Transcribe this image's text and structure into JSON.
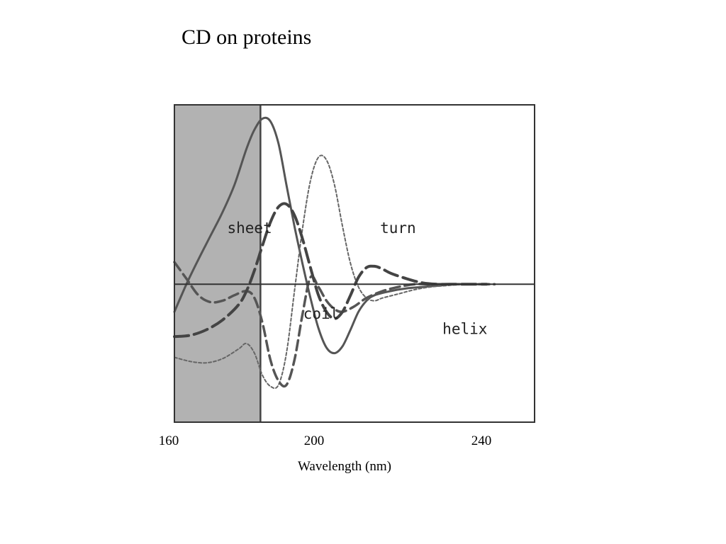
{
  "slide": {
    "title": "CD on proteins"
  },
  "chart_data": {
    "type": "line",
    "title": "",
    "xlabel": "Wavelength (nm)",
    "ylabel": "",
    "xticks": [
      "160",
      "200",
      "240"
    ],
    "xtick_values": [
      160,
      200,
      240
    ],
    "xlim": [
      160,
      250
    ],
    "ylim": [
      -1.0,
      1.3
    ],
    "grid": false,
    "legend": "none",
    "shaded_region": {
      "x_from": 160,
      "x_to": 181.5,
      "color": "#b2b2b2"
    },
    "zero_line": 0,
    "series": [
      {
        "name": "sheet",
        "style": "solid",
        "color": "#555555",
        "x": [
          160,
          163,
          166,
          169,
          172,
          175,
          178,
          180,
          182,
          184,
          186,
          188,
          190,
          192,
          194,
          196,
          198,
          200,
          202,
          204,
          206,
          208,
          210,
          214,
          218,
          222,
          226,
          230,
          234,
          238
        ],
        "y": [
          -0.2,
          0.0,
          0.18,
          0.35,
          0.52,
          0.72,
          0.98,
          1.12,
          1.2,
          1.18,
          1.02,
          0.72,
          0.42,
          0.15,
          -0.1,
          -0.32,
          -0.46,
          -0.5,
          -0.45,
          -0.33,
          -0.2,
          -0.12,
          -0.08,
          -0.05,
          -0.03,
          -0.02,
          -0.01,
          0.0,
          0.0,
          0.0
        ]
      },
      {
        "name": "turn",
        "style": "dotted",
        "color": "#666666",
        "x": [
          160,
          164,
          168,
          172,
          176,
          178,
          180,
          182,
          184,
          186,
          188,
          190,
          192,
          194,
          196,
          198,
          200,
          202,
          204,
          206,
          208,
          210,
          212,
          216,
          220,
          224,
          228,
          232,
          236,
          240
        ],
        "y": [
          -0.53,
          -0.56,
          -0.57,
          -0.54,
          -0.47,
          -0.43,
          -0.5,
          -0.66,
          -0.74,
          -0.73,
          -0.5,
          -0.05,
          0.4,
          0.75,
          0.92,
          0.9,
          0.72,
          0.42,
          0.15,
          -0.02,
          -0.1,
          -0.12,
          -0.1,
          -0.07,
          -0.04,
          -0.02,
          -0.01,
          0.0,
          0.0,
          0.0
        ]
      },
      {
        "name": "coil",
        "style": "dashed",
        "color": "#555555",
        "x": [
          160,
          163,
          166,
          169,
          172,
          175,
          178,
          180,
          182,
          184,
          186,
          188,
          190,
          192,
          194,
          196,
          198,
          200,
          202,
          205,
          208,
          212,
          216,
          220,
          224,
          228,
          232,
          236,
          240
        ],
        "y": [
          0.16,
          0.04,
          -0.08,
          -0.13,
          -0.12,
          -0.08,
          -0.05,
          -0.1,
          -0.28,
          -0.55,
          -0.7,
          -0.73,
          -0.55,
          -0.22,
          0.05,
          -0.02,
          -0.12,
          -0.18,
          -0.2,
          -0.16,
          -0.1,
          -0.05,
          -0.02,
          0.0,
          0.0,
          0.0,
          0.0,
          0.0,
          0.0
        ]
      },
      {
        "name": "helix",
        "style": "long-dash",
        "color": "#444444",
        "x": [
          160,
          164,
          168,
          172,
          176,
          178,
          180,
          182,
          184,
          186,
          188,
          190,
          192,
          194,
          196,
          198,
          200,
          202,
          204,
          206,
          208,
          210,
          212,
          214,
          218,
          222,
          226,
          230,
          234,
          238
        ],
        "y": [
          -0.38,
          -0.37,
          -0.33,
          -0.26,
          -0.15,
          -0.05,
          0.1,
          0.28,
          0.45,
          0.56,
          0.58,
          0.5,
          0.33,
          0.12,
          -0.08,
          -0.2,
          -0.25,
          -0.2,
          -0.08,
          0.05,
          0.12,
          0.13,
          0.11,
          0.08,
          0.04,
          0.01,
          0.0,
          0.0,
          0.0,
          0.0
        ]
      }
    ],
    "annotations": [
      {
        "text": "sheet",
        "x": 173.2,
        "y": 0.37
      },
      {
        "text": "turn",
        "x": 211.4,
        "y": 0.37
      },
      {
        "text": "coil",
        "x": 192.2,
        "y": -0.25
      },
      {
        "text": "helix",
        "x": 227.0,
        "y": -0.36
      }
    ]
  }
}
